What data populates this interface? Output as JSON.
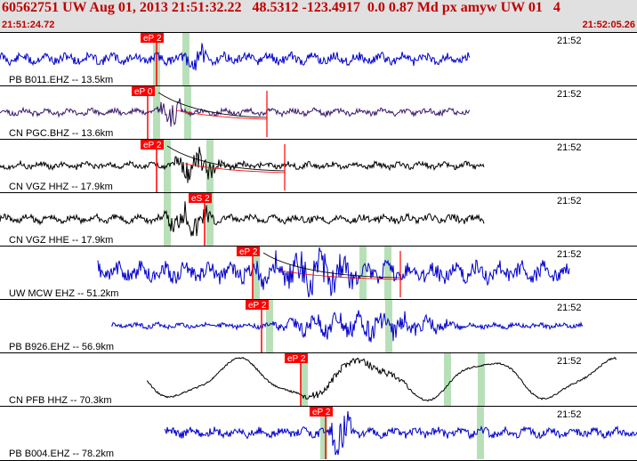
{
  "header": {
    "title": "60562751 UW Aug 01, 2013 21:51:32.22   48.5312 -123.4917  0.0 0.87 Md px amyw UW 01   4",
    "start_time": "21:51:24.72",
    "end_time": "21:52:05.26"
  },
  "colors": {
    "header_bg": "#e0e0e0",
    "header_text": "#c00000",
    "pick": "#ff0000",
    "window": "#b8e0b8"
  },
  "traces": [
    {
      "label": "PB B011.EHZ -- 13.5km",
      "time": "21:52",
      "color": "#0000cc",
      "pick": "eP 2",
      "seed": 11,
      "amp": 8,
      "start": 0,
      "end": 528,
      "pickX": 158,
      "green": [
        176,
        209
      ],
      "burst": [
        205,
        250
      ],
      "burstAmp": 18,
      "coda": false
    },
    {
      "label": "CN PGC.BHZ -- 13.6km",
      "time": "21:52",
      "color": "#3a1a6a",
      "pick": "eP 0",
      "seed": 23,
      "amp": 5,
      "start": 0,
      "end": 528,
      "pickX": 148,
      "green": [
        176,
        211
      ],
      "burst": [
        176,
        230
      ],
      "burstAmp": 20,
      "coda": true,
      "codaEnd": 300
    },
    {
      "label": "CN VGZ HHZ -- 17.9km",
      "time": "21:52",
      "color": "#000000",
      "pick": "eP 2",
      "seed": 37,
      "amp": 5,
      "start": 0,
      "end": 544,
      "pickX": 158,
      "green": [
        188,
        236
      ],
      "burst": [
        188,
        290
      ],
      "burstAmp": 18,
      "coda": true,
      "codaEnd": 320
    },
    {
      "label": "CN VGZ HHE -- 17.9km",
      "time": "21:52",
      "color": "#000000",
      "pick": "eS 2",
      "seed": 41,
      "amp": 6,
      "start": 0,
      "end": 544,
      "pickX": 212,
      "green": [
        188,
        236
      ],
      "burst": [
        180,
        285
      ],
      "burstAmp": 20,
      "coda": false
    },
    {
      "label": "UW MCW EHZ -- 51.2km",
      "time": "21:52",
      "color": "#0000cc",
      "pick": "eP 2",
      "seed": 53,
      "amp": 14,
      "start": 110,
      "end": 640,
      "pickX": 266,
      "green": [
        288,
        408,
        436
      ],
      "burst": [
        280,
        500
      ],
      "burstAmp": 18,
      "coda": true,
      "codaEnd": 450
    },
    {
      "label": "PB B926.EHZ -- 56.9km",
      "time": "21:52",
      "color": "#0000cc",
      "pick": "eP 2",
      "seed": 67,
      "amp": 4,
      "start": 125,
      "end": 655,
      "pickX": 276,
      "green": [
        303,
        437
      ],
      "burst": [
        300,
        655
      ],
      "burstAmp": 16,
      "coda": false
    },
    {
      "label": "CN PFB HHZ -- 70.3km",
      "time": "21:52",
      "color": "#000000",
      "pick": "eP 2",
      "seed": 79,
      "amp": 20,
      "start": 165,
      "end": 693,
      "pickX": 320,
      "green": [
        342,
        503,
        541
      ],
      "burst": [
        340,
        460
      ],
      "burstAmp": 6,
      "coda": false,
      "smooth": true
    },
    {
      "label": "PB B004.EHZ -- 78.2km",
      "time": "21:52",
      "color": "#0000cc",
      "pick": "eP 2",
      "seed": 89,
      "amp": 7,
      "start": 185,
      "end": 716,
      "pickX": 348,
      "green": [
        364,
        540
      ],
      "burst": [
        366,
        420
      ],
      "burstAmp": 24,
      "coda": false
    }
  ]
}
